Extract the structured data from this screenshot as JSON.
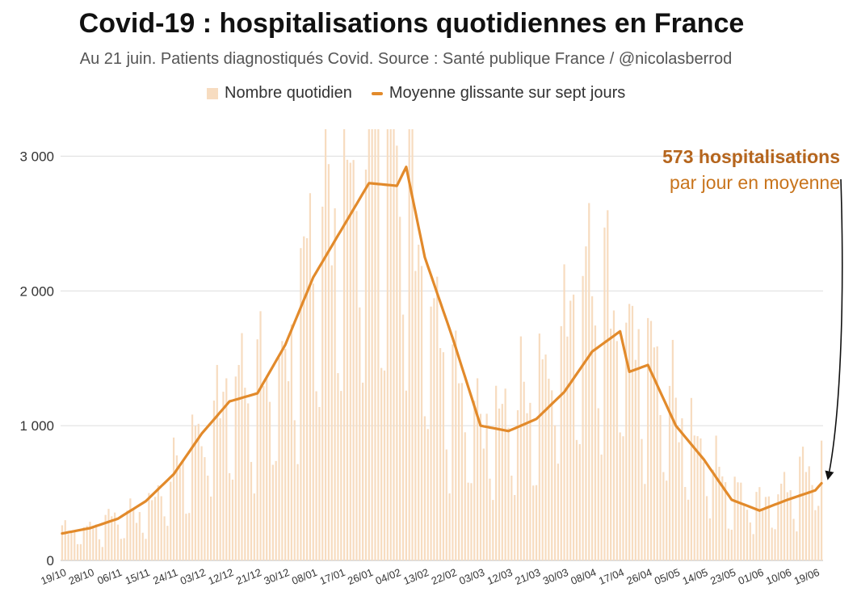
{
  "title": "Covid-19 : hospitalisations quotidiennes en France",
  "subtitle": "Au 21 juin. Patients diagnostiqués Covid. Source : Santé publique France / @nicolasberrod",
  "legend": {
    "bars_label": "Nombre quotidien",
    "line_label": "Moyenne glissante sur sept jours"
  },
  "annotation": {
    "line1": "573 hospitalisations",
    "line2": "par jour en moyenne"
  },
  "colors": {
    "bars": "#f7dcc0",
    "line": "#e28a2b",
    "annotation": "#c8741c",
    "grid": "#dddddd"
  },
  "chart_data": {
    "type": "bar",
    "title": "Covid-19 : hospitalisations quotidiennes en France",
    "ylim": [
      0,
      3000
    ],
    "yticks": [
      0,
      1000,
      2000,
      3000
    ],
    "ytick_labels": [
      "0",
      "1 000",
      "2 000",
      "3 000"
    ],
    "x_tick_labels": [
      "19/10",
      "28/10",
      "06/11",
      "15/11",
      "24/11",
      "03/12",
      "12/12",
      "21/12",
      "30/12",
      "08/01",
      "17/01",
      "26/01",
      "04/02",
      "13/02",
      "22/02",
      "03/03",
      "12/03",
      "21/03",
      "30/03",
      "08/04",
      "17/04",
      "26/04",
      "05/05",
      "14/05",
      "23/05",
      "01/06",
      "10/06",
      "19/06"
    ],
    "grid": true,
    "series": [
      {
        "name": "Nombre quotidien",
        "kind": "bar",
        "x_keypoints": [
          0,
          9,
          18,
          27,
          36,
          45,
          54,
          63,
          72,
          81,
          90,
          99,
          108,
          117,
          126,
          135,
          144,
          153,
          162,
          171,
          180,
          189,
          198,
          207,
          216,
          225,
          234,
          243,
          245
        ],
        "values_keypoints": [
          210,
          240,
          320,
          360,
          650,
          900,
          1280,
          1300,
          1400,
          2400,
          2700,
          3050,
          3300,
          2000,
          1300,
          1000,
          1100,
          1200,
          1700,
          2050,
          1750,
          1500,
          1100,
          800,
          500,
          420,
          520,
          700,
          820
        ]
      },
      {
        "name": "Moyenne glissante sur sept jours",
        "kind": "line",
        "x_keypoints": [
          0,
          9,
          18,
          27,
          36,
          45,
          54,
          63,
          72,
          81,
          90,
          99,
          108,
          111,
          117,
          126,
          135,
          144,
          153,
          162,
          171,
          180,
          183,
          189,
          198,
          207,
          216,
          225,
          234,
          243,
          245
        ],
        "values_keypoints": [
          200,
          240,
          310,
          440,
          640,
          940,
          1180,
          1240,
          1600,
          2100,
          2450,
          2800,
          2780,
          2920,
          2250,
          1650,
          1000,
          960,
          1050,
          1250,
          1550,
          1700,
          1400,
          1450,
          1000,
          750,
          450,
          370,
          450,
          520,
          573
        ]
      }
    ]
  }
}
